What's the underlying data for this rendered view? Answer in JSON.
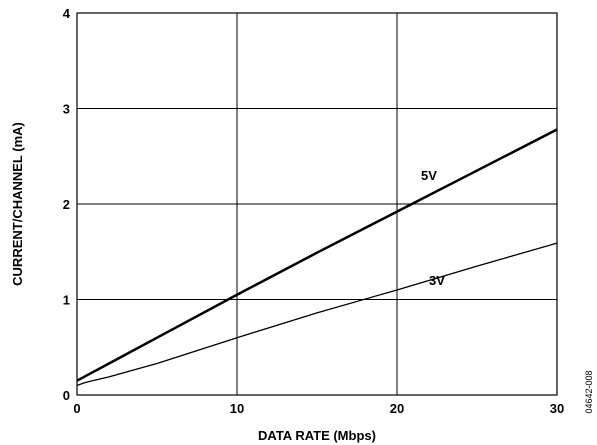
{
  "chart_data": {
    "type": "line",
    "xlabel": "DATA RATE (Mbps)",
    "ylabel": "CURRENT/CHANNEL (mA)",
    "xlim": [
      0,
      30
    ],
    "ylim": [
      0,
      4
    ],
    "x_ticks": [
      0,
      10,
      20,
      30
    ],
    "y_ticks": [
      0,
      1,
      2,
      3,
      4
    ],
    "x_tick_labels": [
      "0",
      "10",
      "20",
      "30"
    ],
    "y_tick_labels": [
      "0",
      "1",
      "2",
      "3",
      "4"
    ],
    "grid": true,
    "series": [
      {
        "name": "5V",
        "x": [
          0,
          1,
          2,
          5,
          10,
          15,
          20,
          25,
          30
        ],
        "y": [
          0.15,
          0.24,
          0.33,
          0.6,
          1.05,
          1.49,
          1.92,
          2.35,
          2.78
        ],
        "color": "#000000",
        "line_width": 2.5
      },
      {
        "name": "3V",
        "x": [
          0,
          0.5,
          1,
          2,
          5,
          10,
          15,
          20,
          25,
          30
        ],
        "y": [
          0.1,
          0.13,
          0.15,
          0.19,
          0.33,
          0.6,
          0.86,
          1.1,
          1.35,
          1.59
        ],
        "color": "#000000",
        "line_width": 1.3
      }
    ],
    "figure_id": "04642-008"
  }
}
